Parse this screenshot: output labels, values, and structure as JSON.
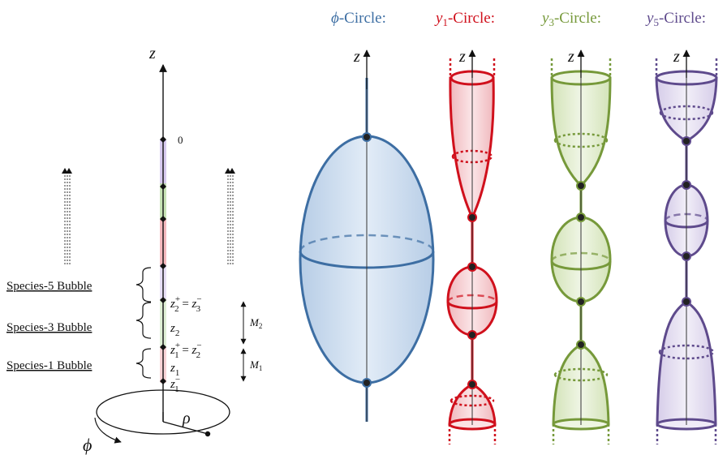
{
  "colors": {
    "phi": "#3d6ea3",
    "phi_fill": "#cfe0f2",
    "y1": "#d0101c",
    "y1_fill": "#f6cfd2",
    "y3": "#76993a",
    "y3_fill": "#e2ecd0",
    "y5": "#5e4a8c",
    "y5_fill": "#e3ddf0",
    "axis": "#111111"
  },
  "left_panel": {
    "axis_label": "z",
    "zero_label": "0",
    "rho_label": "ρ",
    "phi_label": "ϕ",
    "species": [
      {
        "label": "Species-5 Bubble"
      },
      {
        "label": "Species-3 Bubble"
      },
      {
        "label": "Species-1 Bubble"
      }
    ],
    "z_labels": {
      "z2p_base": "z",
      "z2p_sup": "+",
      "z2p_sub": "2",
      "z2p_eq": " = ",
      "z3m_base": "z",
      "z3m_sup": "−",
      "z3m_sub": "3",
      "z2_base": "z",
      "z2_sub": "2",
      "z1p_base": "z",
      "z1p_sup": "+",
      "z1p_sub": "1",
      "z1p_eq": " = ",
      "z2m_base": "z",
      "z2m_sup": "−",
      "z2m_sub": "2",
      "z1_base": "z",
      "z1_sub": "1",
      "z1m_base": "z",
      "z1m_sup": "−",
      "z1m_sub": "1"
    },
    "mass_labels": {
      "m2_base": "M",
      "m2_sub": "2",
      "m1_base": "M",
      "m1_sub": "1"
    }
  },
  "titles": {
    "phi": {
      "sym": "ϕ",
      "text": "-Circle:"
    },
    "y1": {
      "sym": "y",
      "sub": "1",
      "text": "-Circle:"
    },
    "y3": {
      "sym": "y",
      "sub": "3",
      "text": "-Circle:"
    },
    "y5": {
      "sym": "y",
      "sub": "5",
      "text": "-Circle:"
    }
  },
  "circle_axis_label": "z"
}
